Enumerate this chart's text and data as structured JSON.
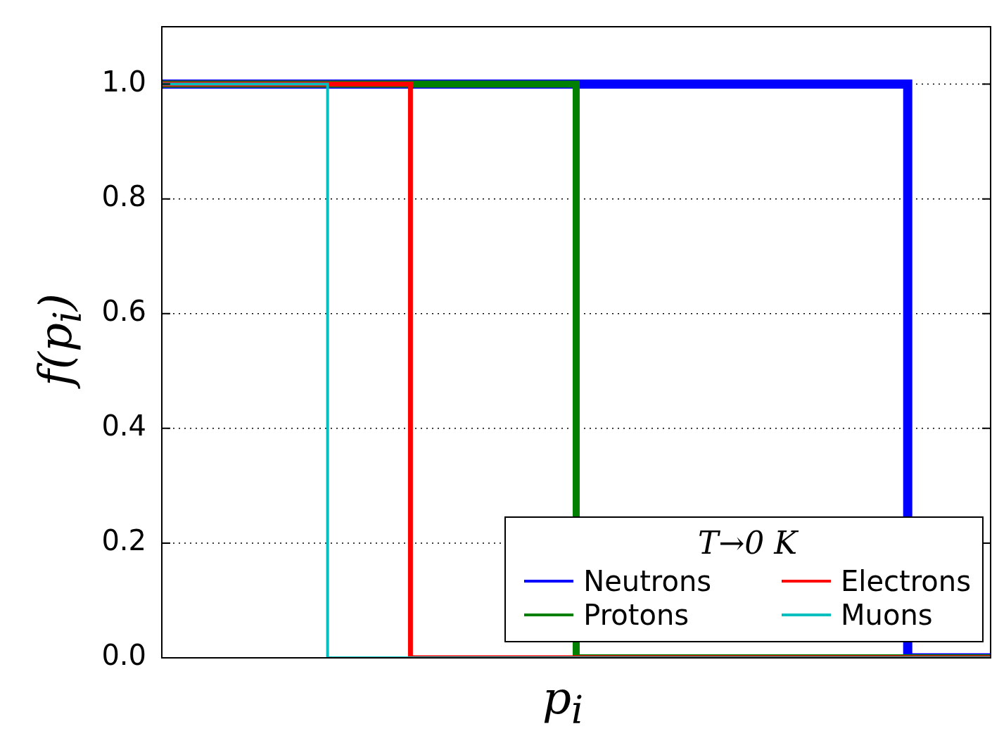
{
  "chart_data": {
    "type": "step",
    "xlabel": "p$_{i}$",
    "ylabel": "f(p$_{i}$)",
    "legend_title": "T→0 K",
    "categories": [
      null,
      null,
      null,
      null,
      null,
      null,
      null,
      null,
      null,
      null,
      null
    ],
    "series": [
      {
        "name": "Neutrons",
        "color": "#0000ff",
        "values": [
          1,
          1,
          1,
          1,
          1,
          1,
          1,
          1,
          1,
          0,
          0
        ]
      },
      {
        "name": "Protons",
        "color": "#008000",
        "values": [
          1,
          1,
          1,
          1,
          1,
          0,
          0,
          0,
          0,
          0,
          0
        ]
      },
      {
        "name": "Electrons",
        "color": "#ff0000",
        "values": [
          1,
          1,
          1,
          0,
          0,
          0,
          0,
          0,
          0,
          0,
          0
        ]
      },
      {
        "name": "Muons",
        "color": "#00bfbf",
        "values": [
          1,
          1,
          0,
          0,
          0,
          0,
          0,
          0,
          0,
          0,
          0
        ]
      }
    ],
    "ylim": [
      0,
      1.1
    ],
    "yticks": [
      {
        "value": 0,
        "label": "0.0"
      },
      {
        "value": 0.2,
        "label": "0.2"
      },
      {
        "value": 0.4,
        "label": "0.4"
      },
      {
        "value": 0.6,
        "label": "0.6"
      },
      {
        "value": 0.8,
        "label": "0.8"
      },
      {
        "value": 1,
        "label": "1.0"
      }
    ],
    "tick_labels": "y",
    "grid": "y",
    "legend": "bottom right"
  }
}
